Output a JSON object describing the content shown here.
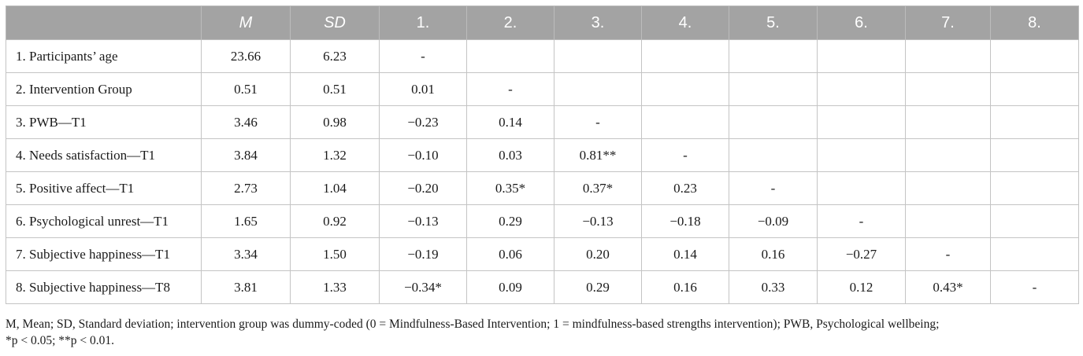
{
  "table": {
    "headers": [
      "",
      "M",
      "SD",
      "1.",
      "2.",
      "3.",
      "4.",
      "5.",
      "6.",
      "7.",
      "8."
    ],
    "rows": [
      [
        "1. Participants’ age",
        "23.66",
        "6.23",
        "-",
        "",
        "",
        "",
        "",
        "",
        "",
        ""
      ],
      [
        "2. Intervention Group",
        "0.51",
        "0.51",
        "0.01",
        "-",
        "",
        "",
        "",
        "",
        "",
        ""
      ],
      [
        "3. PWB—T1",
        "3.46",
        "0.98",
        "−0.23",
        "0.14",
        "-",
        "",
        "",
        "",
        "",
        ""
      ],
      [
        "4. Needs satisfaction—T1",
        "3.84",
        "1.32",
        "−0.10",
        "0.03",
        "0.81**",
        "-",
        "",
        "",
        "",
        ""
      ],
      [
        "5. Positive affect—T1",
        "2.73",
        "1.04",
        "−0.20",
        "0.35*",
        "0.37*",
        "0.23",
        "-",
        "",
        "",
        ""
      ],
      [
        "6. Psychological unrest—T1",
        "1.65",
        "0.92",
        "−0.13",
        "0.29",
        "−0.13",
        "−0.18",
        "−0.09",
        "-",
        "",
        ""
      ],
      [
        "7. Subjective happiness—T1",
        "3.34",
        "1.50",
        "−0.19",
        "0.06",
        "0.20",
        "0.14",
        "0.16",
        "−0.27",
        "-",
        ""
      ],
      [
        "8. Subjective happiness—T8",
        "3.81",
        "1.33",
        "−0.34*",
        "0.09",
        "0.29",
        "0.16",
        "0.33",
        "0.12",
        "0.43*",
        "-"
      ]
    ]
  },
  "note": {
    "line1": "M, Mean; SD, Standard deviation; intervention group was dummy-coded (0 = Mindfulness-Based Intervention; 1 = mindfulness-based strengths intervention); PWB, Psychological wellbeing;",
    "line2": "*p < 0.05; **p < 0.01."
  },
  "colors": {
    "header_bg": "#a3a3a3",
    "header_text": "#ffffff",
    "border": "#c4c4c4"
  }
}
